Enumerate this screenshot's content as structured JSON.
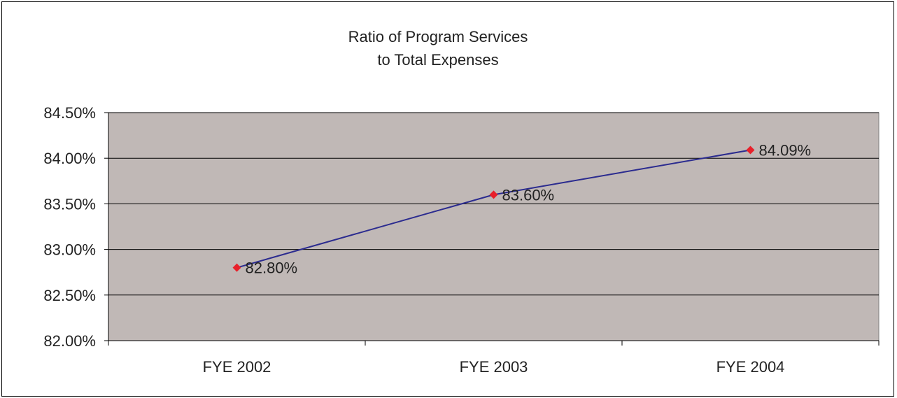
{
  "chart_data": {
    "type": "line",
    "title_lines": [
      "Ratio of Program Services",
      "to Total Expenses"
    ],
    "xlabel": "",
    "ylabel": "",
    "categories": [
      "FYE 2002",
      "FYE 2003",
      "FYE 2004"
    ],
    "series": [
      {
        "values": [
          82.8,
          83.6,
          84.09
        ],
        "data_labels": [
          "82.80%",
          "83.60%",
          "84.09%"
        ],
        "line_color": "#2b2b8f",
        "marker_color": "#e8202a",
        "marker": "diamond"
      }
    ],
    "ylim": [
      82.0,
      84.5
    ],
    "yticks": [
      82.0,
      82.5,
      83.0,
      83.5,
      84.0,
      84.5
    ],
    "ytick_labels": [
      "82.00%",
      "82.50%",
      "83.00%",
      "83.50%",
      "84.00%",
      "84.50%"
    ],
    "grid": true,
    "legend": "none",
    "plot_background": "#c0b8b6"
  }
}
